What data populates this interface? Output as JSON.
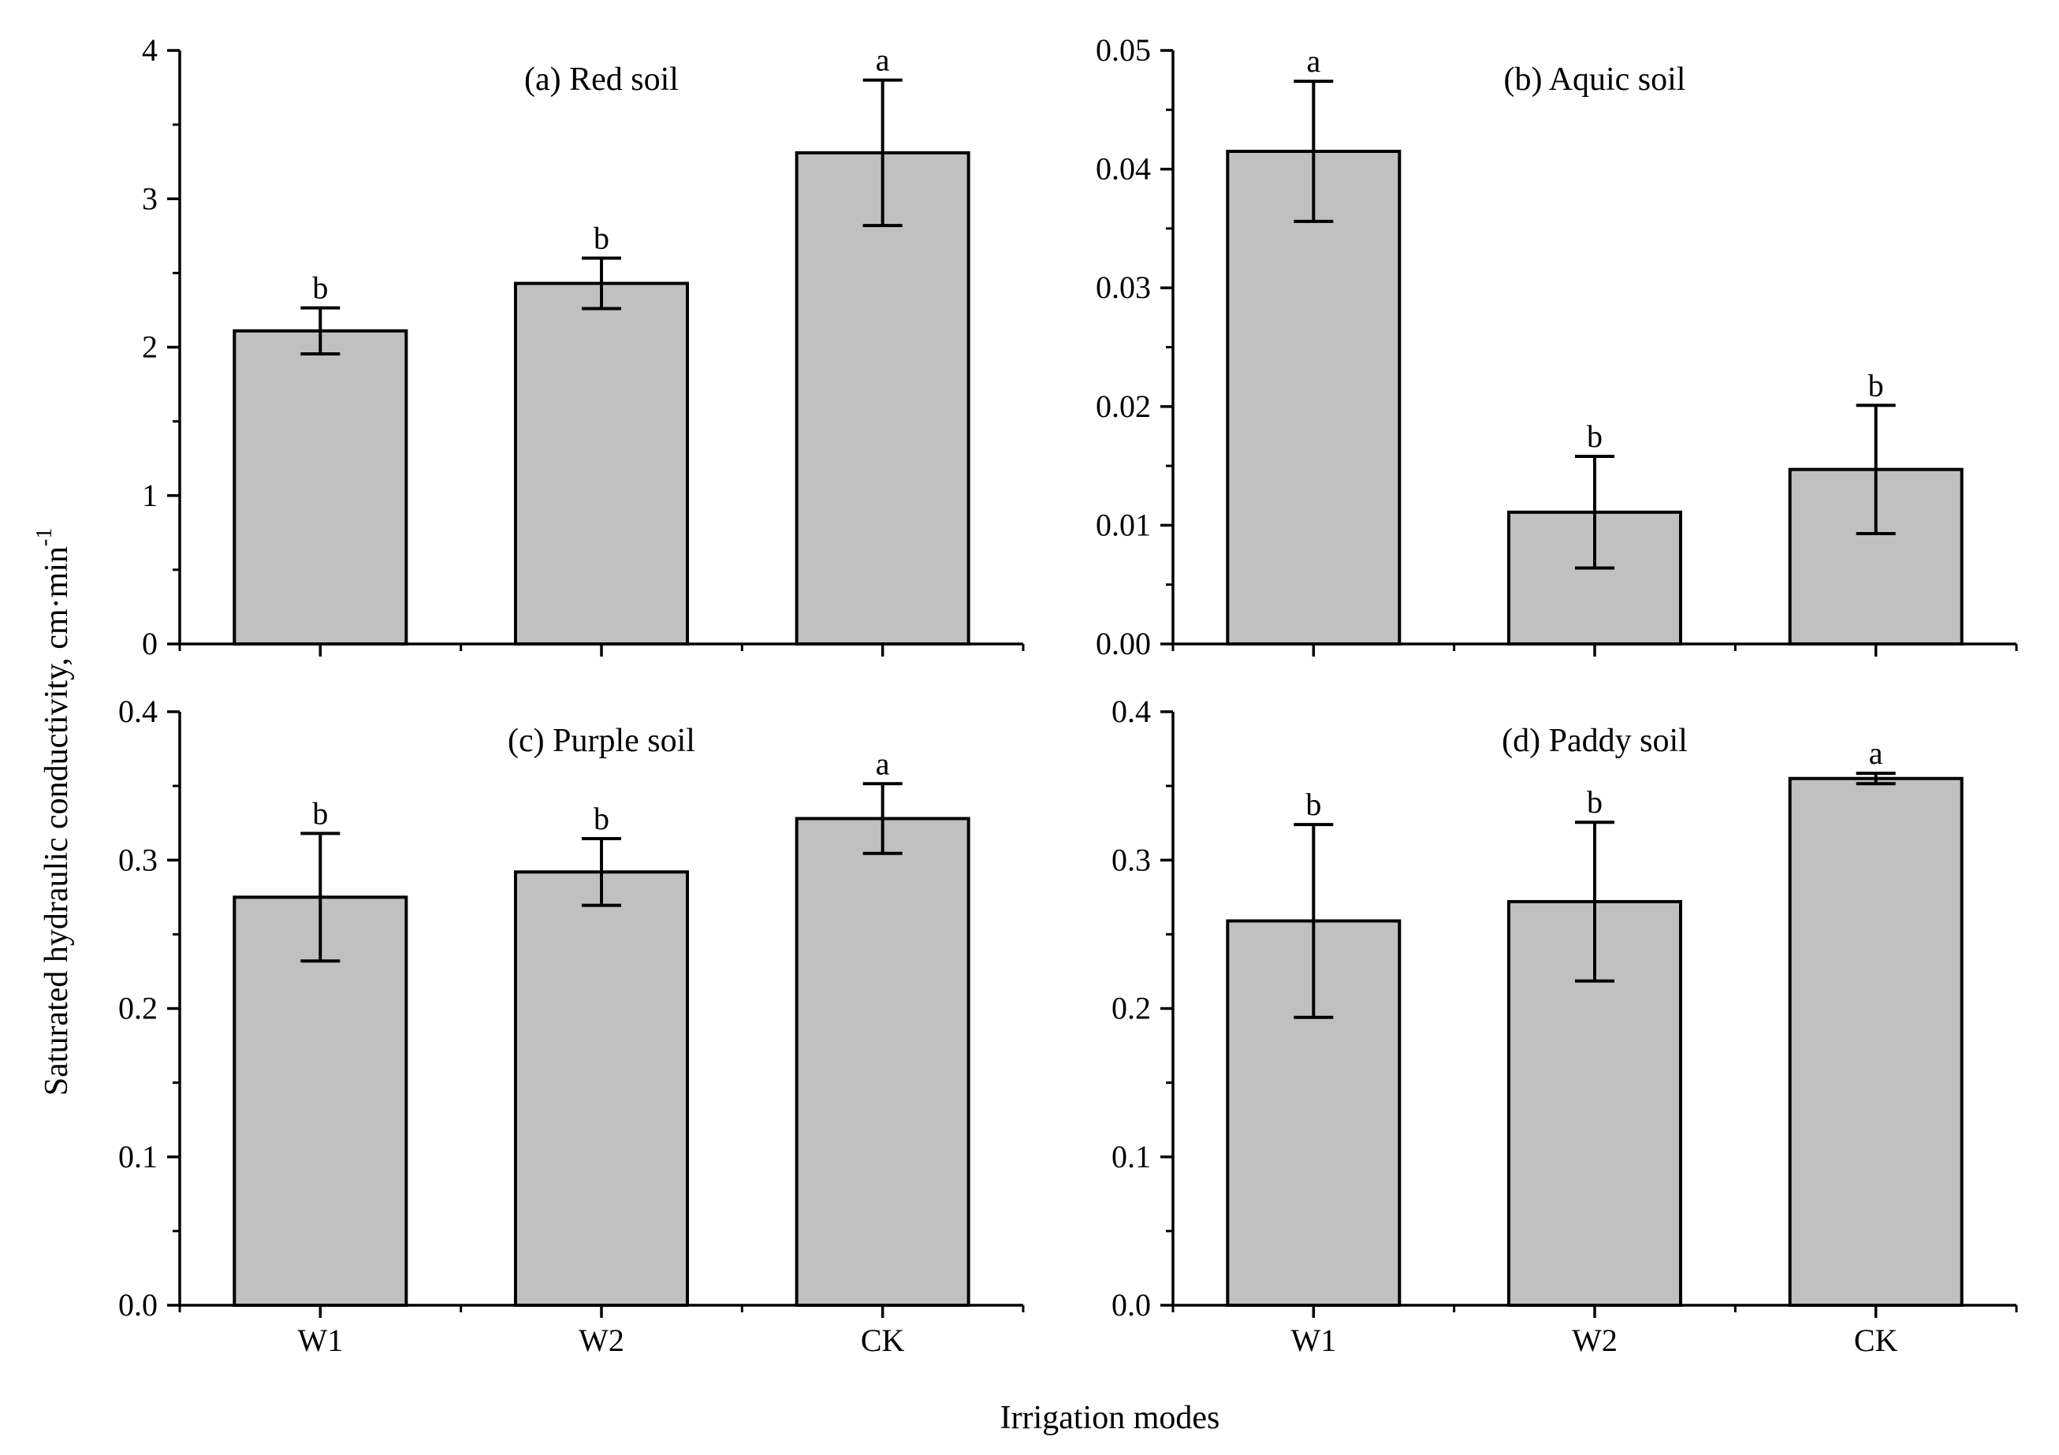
{
  "figure": {
    "ylabel": "Saturated hydraulic conductivity, cm·min",
    "ylabel_sup": "-1",
    "xlabel": "Irrigation modes"
  },
  "colors": {
    "bar_fill": "#c0c0c0",
    "stroke": "#000000"
  },
  "chart_data": [
    {
      "type": "bar",
      "title": "(a) Red soil",
      "categories": [
        "W1",
        "W2",
        "CK"
      ],
      "values": [
        2.11,
        2.43,
        3.31
      ],
      "errors": [
        0.155,
        0.17,
        0.49
      ],
      "letters": [
        "b",
        "b",
        "a"
      ],
      "ylim": [
        0,
        4
      ],
      "yticks": [
        0,
        1,
        2,
        3,
        4
      ],
      "ytick_labels": [
        "0",
        "1",
        "2",
        "3",
        "4"
      ],
      "show_xtick_labels": false
    },
    {
      "type": "bar",
      "title": "(b) Aquic soil",
      "categories": [
        "W1",
        "W2",
        "CK"
      ],
      "values": [
        0.0415,
        0.0111,
        0.0147
      ],
      "errors": [
        0.0059,
        0.0047,
        0.0054
      ],
      "letters": [
        "a",
        "b",
        "b"
      ],
      "ylim": [
        0,
        0.05
      ],
      "yticks": [
        0,
        0.01,
        0.02,
        0.03,
        0.04,
        0.05
      ],
      "ytick_labels": [
        "0.00",
        "0.01",
        "0.02",
        "0.03",
        "0.04",
        "0.05"
      ],
      "show_xtick_labels": false
    },
    {
      "type": "bar",
      "title": "(c) Purple soil",
      "categories": [
        "W1",
        "W2",
        "CK"
      ],
      "values": [
        0.275,
        0.292,
        0.328
      ],
      "errors": [
        0.043,
        0.0225,
        0.0235
      ],
      "letters": [
        "b",
        "b",
        "a"
      ],
      "ylim": [
        0,
        0.4
      ],
      "yticks": [
        0,
        0.1,
        0.2,
        0.3,
        0.4
      ],
      "ytick_labels": [
        "0.0",
        "0.1",
        "0.2",
        "0.3",
        "0.4"
      ],
      "show_xtick_labels": true
    },
    {
      "type": "bar",
      "title": "(d) Paddy soil",
      "categories": [
        "W1",
        "W2",
        "CK"
      ],
      "values": [
        0.259,
        0.272,
        0.355
      ],
      "errors": [
        0.065,
        0.0535,
        0.0035
      ],
      "letters": [
        "b",
        "b",
        "a"
      ],
      "ylim": [
        0,
        0.4
      ],
      "yticks": [
        0,
        0.1,
        0.2,
        0.3,
        0.4
      ],
      "ytick_labels": [
        "0.0",
        "0.1",
        "0.2",
        "0.3",
        "0.4"
      ],
      "show_xtick_labels": true
    }
  ]
}
